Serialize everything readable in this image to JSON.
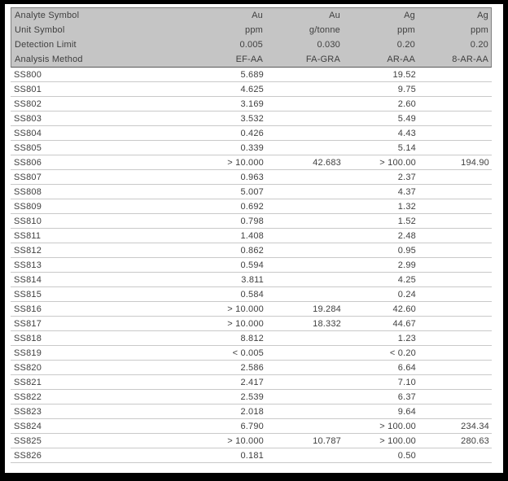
{
  "colors": {
    "frame": "#000000",
    "page_bg": "#ffffff",
    "header_bg": "#c5c5c5",
    "header_border": "#7f7f7f",
    "row_line": "#c9c9c9",
    "text": "#3f3f3f"
  },
  "table": {
    "header_rows": [
      {
        "label": "Analyte Symbol",
        "values": [
          "Au",
          "Au",
          "Ag",
          "Ag"
        ]
      },
      {
        "label": "Unit Symbol",
        "values": [
          "ppm",
          "g/tonne",
          "ppm",
          "ppm"
        ]
      },
      {
        "label": "Detection Limit",
        "values": [
          "0.005",
          "0.030",
          "0.20",
          "0.20"
        ]
      },
      {
        "label": "Analysis Method",
        "values": [
          "EF-AA",
          "FA-GRA",
          "AR-AA",
          "8-AR-AA"
        ]
      }
    ],
    "rows": [
      {
        "id": "SS800",
        "values": [
          "5.689",
          "",
          "19.52",
          ""
        ]
      },
      {
        "id": "SS801",
        "values": [
          "4.625",
          "",
          "9.75",
          ""
        ]
      },
      {
        "id": "SS802",
        "values": [
          "3.169",
          "",
          "2.60",
          ""
        ]
      },
      {
        "id": "SS803",
        "values": [
          "3.532",
          "",
          "5.49",
          ""
        ]
      },
      {
        "id": "SS804",
        "values": [
          "0.426",
          "",
          "4.43",
          ""
        ]
      },
      {
        "id": "SS805",
        "values": [
          "0.339",
          "",
          "5.14",
          ""
        ]
      },
      {
        "id": "SS806",
        "values": [
          "> 10.000",
          "42.683",
          "> 100.00",
          "194.90"
        ]
      },
      {
        "id": "SS807",
        "values": [
          "0.963",
          "",
          "2.37",
          ""
        ]
      },
      {
        "id": "SS808",
        "values": [
          "5.007",
          "",
          "4.37",
          ""
        ]
      },
      {
        "id": "SS809",
        "values": [
          "0.692",
          "",
          "1.32",
          ""
        ]
      },
      {
        "id": "SS810",
        "values": [
          "0.798",
          "",
          "1.52",
          ""
        ]
      },
      {
        "id": "SS811",
        "values": [
          "1.408",
          "",
          "2.48",
          ""
        ]
      },
      {
        "id": "SS812",
        "values": [
          "0.862",
          "",
          "0.95",
          ""
        ]
      },
      {
        "id": "SS813",
        "values": [
          "0.594",
          "",
          "2.99",
          ""
        ]
      },
      {
        "id": "SS814",
        "values": [
          "3.811",
          "",
          "4.25",
          ""
        ]
      },
      {
        "id": "SS815",
        "values": [
          "0.584",
          "",
          "0.24",
          ""
        ]
      },
      {
        "id": "SS816",
        "values": [
          "> 10.000",
          "19.284",
          "42.60",
          ""
        ]
      },
      {
        "id": "SS817",
        "values": [
          "> 10.000",
          "18.332",
          "44.67",
          ""
        ]
      },
      {
        "id": "SS818",
        "values": [
          "8.812",
          "",
          "1.23",
          ""
        ]
      },
      {
        "id": "SS819",
        "values": [
          "< 0.005",
          "",
          "< 0.20",
          ""
        ]
      },
      {
        "id": "SS820",
        "values": [
          "2.586",
          "",
          "6.64",
          ""
        ]
      },
      {
        "id": "SS821",
        "values": [
          "2.417",
          "",
          "7.10",
          ""
        ]
      },
      {
        "id": "SS822",
        "values": [
          "2.539",
          "",
          "6.37",
          ""
        ]
      },
      {
        "id": "SS823",
        "values": [
          "2.018",
          "",
          "9.64",
          ""
        ]
      },
      {
        "id": "SS824",
        "values": [
          "6.790",
          "",
          "> 100.00",
          "234.34"
        ]
      },
      {
        "id": "SS825",
        "values": [
          "> 10.000",
          "10.787",
          "> 100.00",
          "280.63"
        ]
      },
      {
        "id": "SS826",
        "values": [
          "0.181",
          "",
          "0.50",
          ""
        ]
      }
    ]
  }
}
